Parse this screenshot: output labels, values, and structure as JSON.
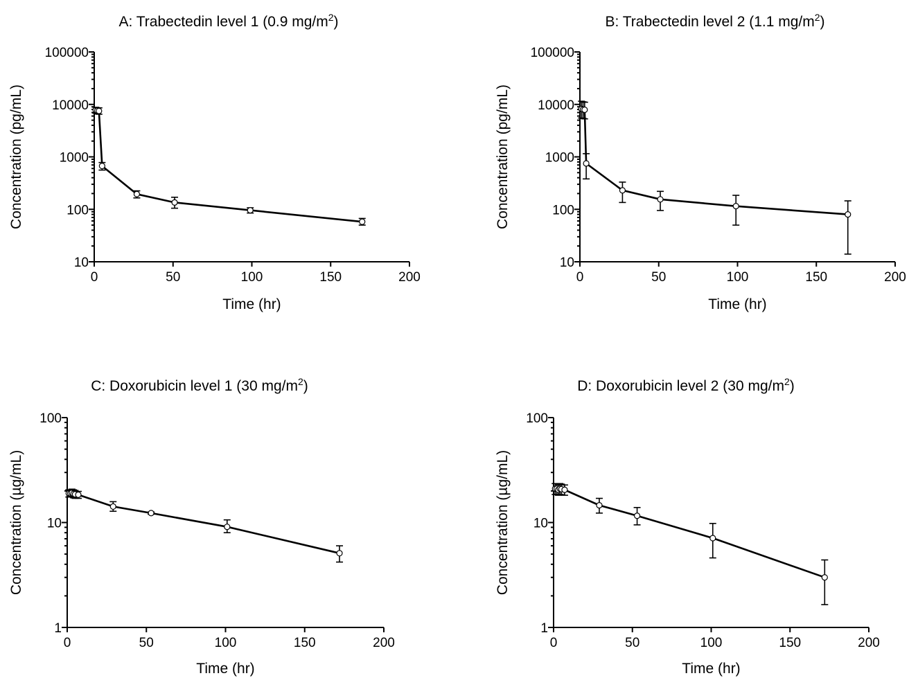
{
  "chart_data": [
    {
      "id": "A",
      "type": "line",
      "title": "A: Trabectedin level 1 (0.9 mg/m",
      "title_sup": "2",
      "title_end": ")",
      "xlabel": "Time (hr)",
      "ylabel": "Concentration (pg/mL)",
      "xlim": [
        0,
        200
      ],
      "ylim": [
        10,
        100000
      ],
      "yscale": "log",
      "xticks": [
        "0",
        "50",
        "100",
        "150",
        "200"
      ],
      "yticks": [
        "10",
        "100",
        "1000",
        "10000",
        "100000"
      ],
      "series": [
        {
          "x": [
            1,
            2,
            3,
            5,
            27,
            51,
            99,
            170
          ],
          "y": [
            7800,
            7600,
            7500,
            670,
            195,
            135,
            96,
            58
          ],
          "err_low": [
            6800,
            6600,
            6500,
            560,
            165,
            105,
            85,
            50
          ],
          "err_high": [
            8800,
            8600,
            8600,
            780,
            225,
            170,
            107,
            67
          ]
        }
      ]
    },
    {
      "id": "B",
      "type": "line",
      "title": "B: Trabectedin level 2 (1.1 mg/m",
      "title_sup": "2",
      "title_end": ")",
      "xlabel": "Time (hr)",
      "ylabel": "Concentration (pg/mL)",
      "xlim": [
        0,
        200
      ],
      "ylim": [
        10,
        100000
      ],
      "yscale": "log",
      "xticks": [
        "0",
        "50",
        "100",
        "150",
        "200"
      ],
      "yticks": [
        "10",
        "100",
        "1000",
        "10000",
        "100000"
      ],
      "series": [
        {
          "x": [
            1,
            2,
            3,
            4,
            27,
            51,
            99,
            170
          ],
          "y": [
            8200,
            8000,
            7900,
            750,
            230,
            155,
            115,
            80
          ],
          "err_low": [
            5500,
            5400,
            5300,
            380,
            135,
            95,
            50,
            14
          ],
          "err_high": [
            11500,
            11200,
            11000,
            1150,
            330,
            220,
            185,
            145
          ]
        }
      ]
    },
    {
      "id": "C",
      "type": "line",
      "title": "C: Doxorubicin level 1 (30 mg/m",
      "title_sup": "2",
      "title_end": ")",
      "xlabel": "Time (hr)",
      "ylabel": "Concentration (µg/mL)",
      "xlim": [
        0,
        200
      ],
      "ylim": [
        1,
        100
      ],
      "yscale": "log",
      "xticks": [
        "0",
        "50",
        "100",
        "150",
        "200"
      ],
      "yticks": [
        "1",
        "10",
        "100"
      ],
      "series": [
        {
          "x": [
            1,
            2,
            3,
            4,
            5,
            7,
            29,
            53,
            101,
            172
          ],
          "y": [
            19,
            19,
            19.2,
            18.8,
            18.6,
            18.4,
            14.2,
            12.3,
            9.1,
            5.1
          ],
          "err_low": [
            17.5,
            17.5,
            17.6,
            17.2,
            17.0,
            17.0,
            12.8,
            12.0,
            8.0,
            4.2
          ],
          "err_high": [
            20.5,
            20.5,
            20.8,
            20.5,
            20.2,
            19.8,
            15.8,
            12.6,
            10.6,
            6.0
          ]
        }
      ]
    },
    {
      "id": "D",
      "type": "line",
      "title": "D: Doxorubicin level 2 (30 mg/m",
      "title_sup": "2",
      "title_end": ")",
      "xlabel": "Time (hr)",
      "ylabel": "Concentration (µg/mL)",
      "xlim": [
        0,
        200
      ],
      "ylim": [
        1,
        100
      ],
      "yscale": "log",
      "xticks": [
        "0",
        "50",
        "100",
        "150",
        "200"
      ],
      "yticks": [
        "1",
        "10",
        "100"
      ],
      "series": [
        {
          "x": [
            1,
            2,
            3,
            4,
            5,
            7,
            29,
            53,
            101,
            172
          ],
          "y": [
            21,
            21,
            20.5,
            21,
            20.8,
            20.5,
            14.6,
            11.6,
            7.1,
            3.0
          ],
          "err_low": [
            18.5,
            18.5,
            18.2,
            18.5,
            18.4,
            18.2,
            12.3,
            9.5,
            4.6,
            1.65
          ],
          "err_high": [
            23.5,
            23.5,
            23.0,
            23.5,
            23.2,
            22.8,
            17.0,
            13.9,
            9.8,
            4.4
          ]
        }
      ]
    }
  ]
}
